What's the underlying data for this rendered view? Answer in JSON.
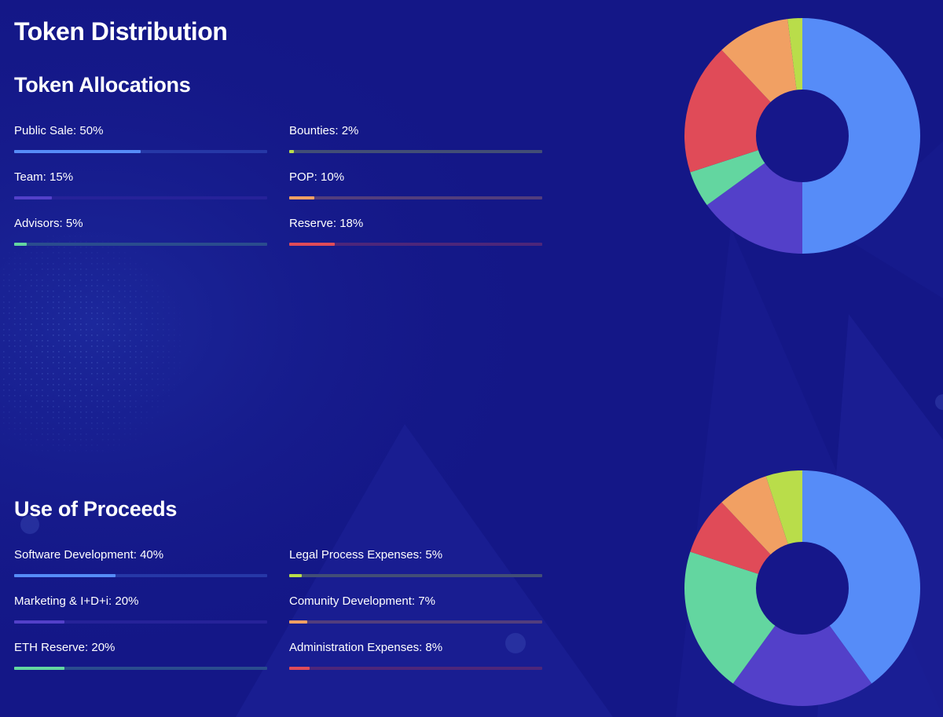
{
  "page": {
    "title": "Token Distribution"
  },
  "chart_data": [
    {
      "type": "pie",
      "title": "Token Allocations",
      "categories": [
        "Public Sale",
        "Team",
        "Advisors",
        "Bounties",
        "POP",
        "Reserve"
      ],
      "values": [
        50,
        15,
        5,
        2,
        10,
        18
      ],
      "labels": [
        "Public Sale: 50%",
        "Team: 15%",
        "Advisors: 5%",
        "Bounties: 2%",
        "POP: 10%",
        "Reserve: 18%"
      ],
      "colors": [
        "#568cf8",
        "#5340c9",
        "#63d6a0",
        "#b9dd4a",
        "#f1a063",
        "#e04b58"
      ],
      "slice_order": [
        0,
        1,
        2,
        5,
        4,
        3
      ]
    },
    {
      "type": "pie",
      "title": "Use of Proceeds",
      "categories": [
        "Software Development",
        "Marketing & I+D+i",
        "ETH Reserve",
        "Legal Process Expenses",
        "Comunity Development",
        "Administration Expenses"
      ],
      "values": [
        40,
        20,
        20,
        5,
        7,
        8
      ],
      "labels": [
        "Software Development: 40%",
        "Marketing & I+D+i: 20%",
        "ETH Reserve: 20%",
        "Legal Process Expenses: 5%",
        "Comunity Development: 7%",
        "Administration Expenses: 8%"
      ],
      "colors": [
        "#568cf8",
        "#5340c9",
        "#63d6a0",
        "#b9dd4a",
        "#f1a063",
        "#e04b58"
      ],
      "slice_order": [
        0,
        1,
        2,
        5,
        4,
        3
      ]
    }
  ]
}
